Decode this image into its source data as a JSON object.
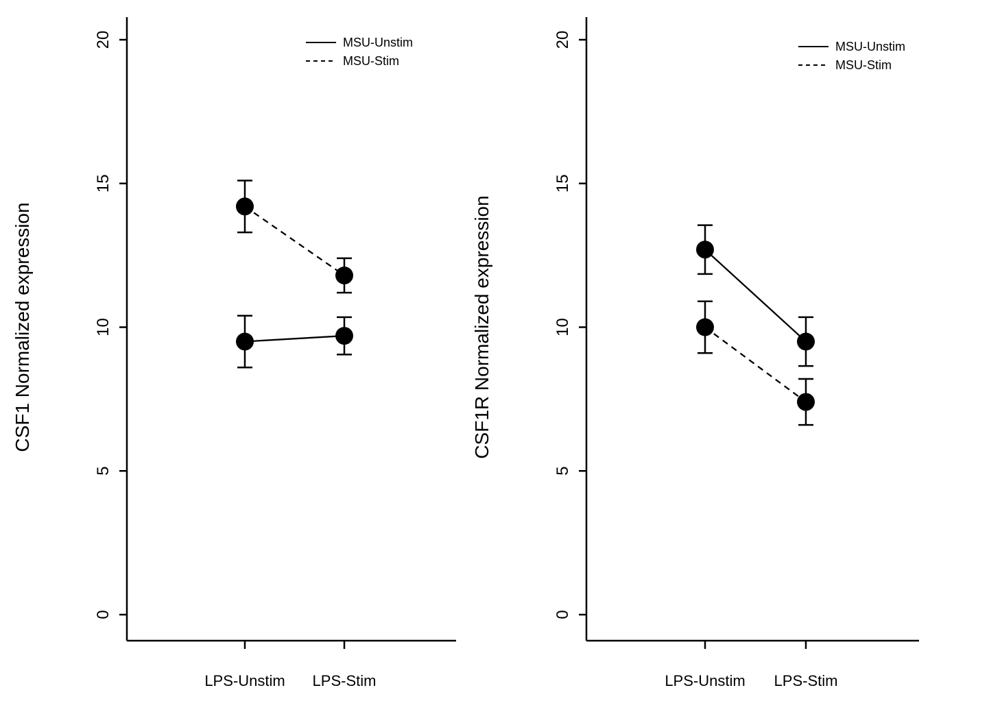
{
  "page": {
    "background": "#ffffff",
    "foreground": "#000000"
  },
  "chart_data": [
    {
      "type": "line",
      "title": "",
      "xlabel": "",
      "ylabel": "CSF1 Normalized expression",
      "categories": [
        "LPS-Unstim",
        "LPS-Stim"
      ],
      "yticks": [
        0,
        5,
        10,
        15,
        20
      ],
      "ylim": [
        0,
        20
      ],
      "grid": false,
      "legend_position": "top-right",
      "legend": [
        {
          "label": "MSU-Unstim",
          "linestyle": "solid"
        },
        {
          "label": "MSU-Stim",
          "linestyle": "dashed"
        }
      ],
      "series": [
        {
          "name": "MSU-Unstim",
          "linestyle": "solid",
          "values": [
            9.5,
            9.7
          ],
          "errors": [
            0.9,
            0.65
          ]
        },
        {
          "name": "MSU-Stim",
          "linestyle": "dashed",
          "values": [
            14.2,
            11.8
          ],
          "errors": [
            0.9,
            0.6
          ]
        }
      ],
      "line_color": "#000000",
      "point_color": "#000000"
    },
    {
      "type": "line",
      "title": "",
      "xlabel": "",
      "ylabel": "CSF1R Normalized expression",
      "categories": [
        "LPS-Unstim",
        "LPS-Stim"
      ],
      "yticks": [
        0,
        5,
        10,
        15,
        20
      ],
      "ylim": [
        0,
        20
      ],
      "grid": false,
      "legend_position": "top-right",
      "legend": [
        {
          "label": "MSU-Unstim",
          "linestyle": "solid"
        },
        {
          "label": "MSU-Stim",
          "linestyle": "dashed"
        }
      ],
      "series": [
        {
          "name": "MSU-Unstim",
          "linestyle": "solid",
          "values": [
            12.7,
            9.5
          ],
          "errors": [
            0.85,
            0.85
          ]
        },
        {
          "name": "MSU-Stim",
          "linestyle": "dashed",
          "values": [
            10.0,
            7.4
          ],
          "errors": [
            0.9,
            0.8
          ]
        }
      ],
      "line_color": "#000000",
      "point_color": "#000000"
    }
  ]
}
